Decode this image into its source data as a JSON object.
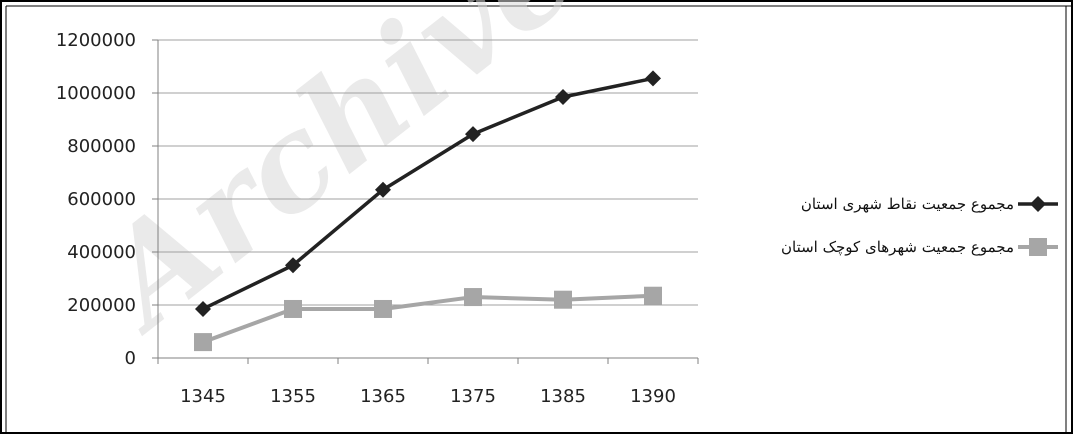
{
  "watermark": "Archive",
  "chart_data": {
    "type": "line",
    "categories": [
      "1345",
      "1355",
      "1365",
      "1375",
      "1385",
      "1390"
    ],
    "ylim": [
      0,
      1200000
    ],
    "yticks": [
      "0",
      "200000",
      "400000",
      "600000",
      "800000",
      "1000000",
      "1200000"
    ],
    "grid": true,
    "legend_position": "right",
    "series": [
      {
        "name": "مجموع جمعیت نقاط شهری استان",
        "values": [
          185000,
          350000,
          635000,
          845000,
          985000,
          1055000
        ],
        "color": "#222222",
        "marker": "diamond"
      },
      {
        "name": "مجموع جمعیت شهرهای کوچک استان",
        "values": [
          60000,
          185000,
          185000,
          230000,
          220000,
          235000
        ],
        "color": "#a6a6a6",
        "marker": "square"
      }
    ]
  }
}
